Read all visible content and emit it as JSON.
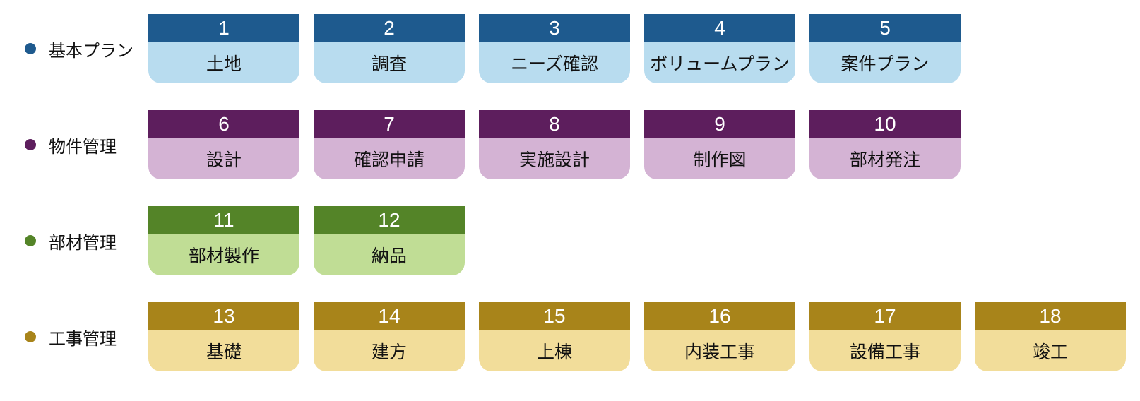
{
  "rows": [
    {
      "legend_label": "基本プラン",
      "bullet_color": "#1e5a8e",
      "header_color": "#1e5a8e",
      "body_color": "#b8dcef",
      "cards": [
        {
          "number": "1",
          "label": "土地"
        },
        {
          "number": "2",
          "label": "調査"
        },
        {
          "number": "3",
          "label": "ニーズ確認"
        },
        {
          "number": "4",
          "label": "ボリュームプラン"
        },
        {
          "number": "5",
          "label": "案件プラン"
        }
      ]
    },
    {
      "legend_label": "物件管理",
      "bullet_color": "#5d1e5d",
      "header_color": "#5d1e5d",
      "body_color": "#d4b3d4",
      "cards": [
        {
          "number": "6",
          "label": "設計"
        },
        {
          "number": "7",
          "label": "確認申請"
        },
        {
          "number": "8",
          "label": "実施設計"
        },
        {
          "number": "9",
          "label": "制作図"
        },
        {
          "number": "10",
          "label": "部材発注"
        }
      ]
    },
    {
      "legend_label": "部材管理",
      "bullet_color": "#548428",
      "header_color": "#548428",
      "body_color": "#c0dd95",
      "cards": [
        {
          "number": "11",
          "label": "部材製作"
        },
        {
          "number": "12",
          "label": "納品"
        }
      ]
    },
    {
      "legend_label": "工事管理",
      "bullet_color": "#a8841a",
      "header_color": "#a8841a",
      "body_color": "#f2dd9a",
      "cards": [
        {
          "number": "13",
          "label": "基礎"
        },
        {
          "number": "14",
          "label": "建方"
        },
        {
          "number": "15",
          "label": "上棟"
        },
        {
          "number": "16",
          "label": "内装工事"
        },
        {
          "number": "17",
          "label": "設備工事"
        },
        {
          "number": "18",
          "label": "竣工"
        }
      ]
    }
  ]
}
